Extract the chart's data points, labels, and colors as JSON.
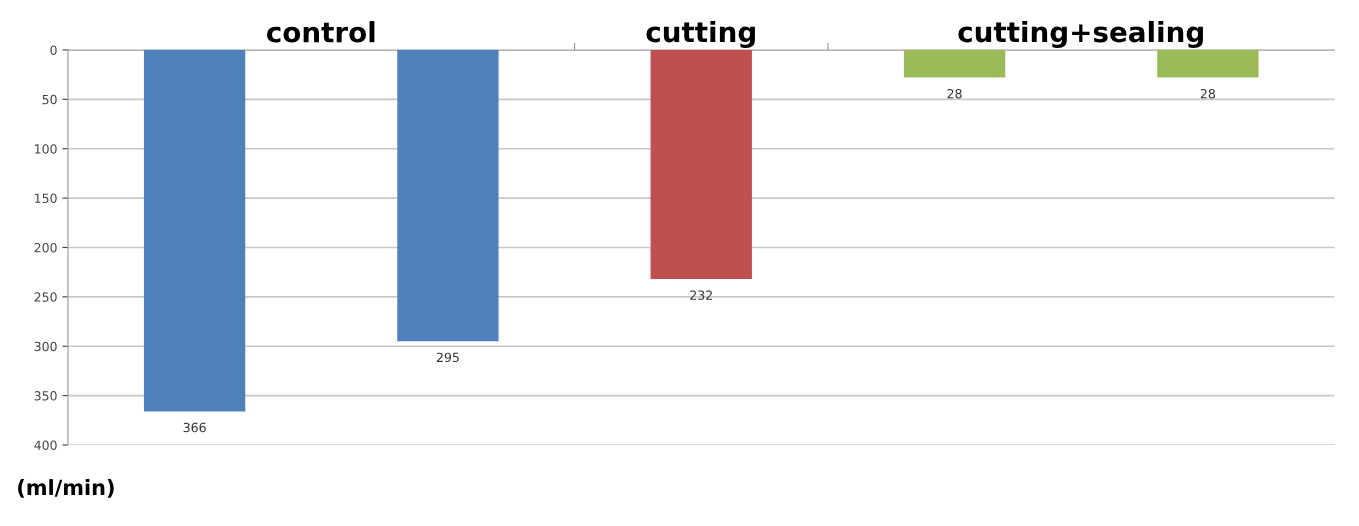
{
  "chart_data": {
    "type": "bar",
    "categories": [
      null,
      null,
      null,
      null,
      null
    ],
    "values": [
      366,
      295,
      232,
      28,
      28
    ],
    "colors": [
      "#4f81bd",
      "#4f81bd",
      "#c0504d",
      "#9bbb59",
      "#9bbb59"
    ],
    "ylim": [
      400,
      0
    ],
    "yticks": [
      0,
      50,
      100,
      150,
      200,
      250,
      300,
      350,
      400
    ],
    "ylabel": "(ml/min)",
    "annotations": [
      "control",
      "cutting",
      "cutting+sealing"
    ],
    "data_labels": true,
    "grid": "y",
    "legend": false
  }
}
